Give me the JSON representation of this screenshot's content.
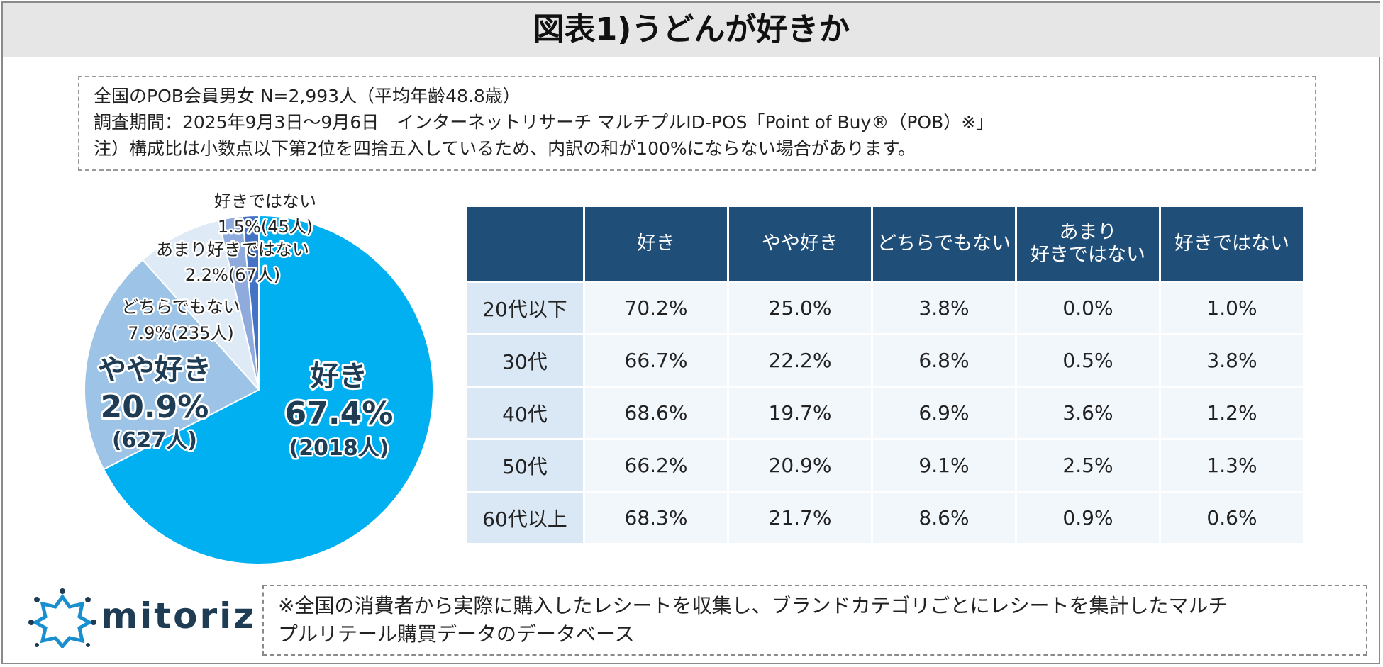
{
  "title": "図表1)うどんが好きか",
  "notes": {
    "line1": "全国のPOB会員男女 N=2,993人（平均年齢48.8歳）",
    "line2": "調査期間：2025年9月3日〜9月6日　インターネットリサーチ マルチプルID-POS「Point of Buy®（POB）※」",
    "line3": "注）構成比は小数点以下第2位を四捨五入しているため、内訳の和が100%にならない場合があります。"
  },
  "colors": {
    "like": "#00b0f0",
    "somewhat_like": "#9dc3e6",
    "neutral": "#deebf7",
    "not_really": "#8faadc",
    "dislike": "#4472c4",
    "header": "#1f4e79"
  },
  "chart_data": [
    {
      "type": "pie",
      "slices": [
        {
          "category": "好き",
          "percent": 67.4,
          "count": 2018,
          "pct_label": "67.4%",
          "count_label": "(2018人)"
        },
        {
          "category": "やや好き",
          "percent": 20.9,
          "count": 627,
          "pct_label": "20.9%",
          "count_label": "(627人)"
        },
        {
          "category": "どちらでもない",
          "percent": 7.9,
          "count": 235,
          "pct_label": "7.9%(235人)"
        },
        {
          "category": "あまり好きではない",
          "percent": 2.2,
          "count": 67,
          "pct_label": "2.2%(67人)"
        },
        {
          "category": "好きではない",
          "percent": 1.5,
          "count": 45,
          "pct_label": "1.5%(45人)"
        }
      ]
    },
    {
      "type": "table",
      "columns": [
        "好き",
        "やや好き",
        "どちらでもない",
        "あまり\n好きではない",
        "好きではない"
      ],
      "rows": [
        {
          "label": "20代以下",
          "values": [
            "70.2%",
            "25.0%",
            "3.8%",
            "0.0%",
            "1.0%"
          ]
        },
        {
          "label": "30代",
          "values": [
            "66.7%",
            "22.2%",
            "6.8%",
            "0.5%",
            "3.8%"
          ]
        },
        {
          "label": "40代",
          "values": [
            "68.6%",
            "19.7%",
            "6.9%",
            "3.6%",
            "1.2%"
          ]
        },
        {
          "label": "50代",
          "values": [
            "66.2%",
            "20.9%",
            "9.1%",
            "2.5%",
            "1.3%"
          ]
        },
        {
          "label": "60代以上",
          "values": [
            "68.3%",
            "21.7%",
            "8.6%",
            "0.9%",
            "0.6%"
          ]
        }
      ]
    }
  ],
  "footer_note": {
    "line1": "※全国の消費者から実際に購入したレシートを収集し、ブランドカテゴリごとにレシートを集計したマルチ",
    "line2": "プルリテール購買データのデータベース"
  },
  "logo": {
    "text": "mitoriz",
    "icon": "sun-burst-logo-icon"
  }
}
